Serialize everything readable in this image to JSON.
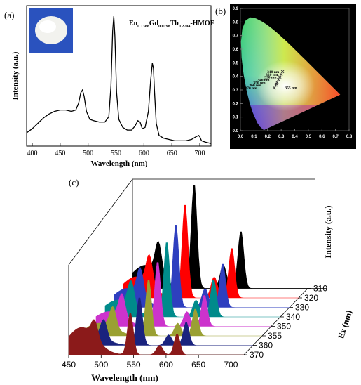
{
  "panel_labels": {
    "a": "(a)",
    "b": "(b)",
    "c": "(c)"
  },
  "chart_data": [
    {
      "type": "line",
      "panel": "(a)",
      "title_parts": {
        "eu": "Eu",
        "eu_sub": "0.1388",
        "gd": "Gd",
        "gd_sub": "0.0198",
        "tb": "Tb",
        "tb_sub": "0.2704",
        "suffix": "-HMOF"
      },
      "xlabel": "Wavelength (nm)",
      "ylabel": "Intensity (a.u.)",
      "xlim": [
        390,
        720
      ],
      "ylim": [
        0,
        1.05
      ],
      "xticks": [
        400,
        450,
        500,
        550,
        600,
        650,
        700
      ],
      "series": [
        {
          "x": [
            390,
            400,
            410,
            420,
            430,
            440,
            450,
            460,
            470,
            478,
            483,
            487,
            490,
            493,
            497,
            503,
            510,
            520,
            530,
            537,
            541,
            544,
            546,
            548,
            551,
            555,
            562,
            570,
            578,
            584,
            589,
            593,
            597,
            602,
            608,
            612,
            615,
            617,
            619,
            622,
            627,
            635,
            645,
            655,
            665,
            675,
            685,
            693,
            698,
            700,
            703,
            710,
            720
          ],
          "values": [
            0.1,
            0.13,
            0.17,
            0.21,
            0.24,
            0.26,
            0.27,
            0.27,
            0.26,
            0.27,
            0.32,
            0.4,
            0.42,
            0.37,
            0.26,
            0.2,
            0.19,
            0.18,
            0.18,
            0.22,
            0.45,
            0.86,
            0.97,
            0.82,
            0.4,
            0.2,
            0.14,
            0.12,
            0.12,
            0.15,
            0.19,
            0.18,
            0.13,
            0.14,
            0.26,
            0.49,
            0.62,
            0.58,
            0.4,
            0.17,
            0.08,
            0.06,
            0.05,
            0.04,
            0.04,
            0.04,
            0.05,
            0.07,
            0.08,
            0.07,
            0.04,
            0.03,
            0.02
          ]
        }
      ]
    },
    {
      "type": "scatter",
      "panel": "(b)",
      "xticks": [
        "0.0",
        "0.1",
        "0.2",
        "0.3",
        "0.4",
        "0.5",
        "0.6",
        "0.7",
        "0.8"
      ],
      "yticks": [
        "0.0",
        "0.1",
        "0.2",
        "0.3",
        "0.4",
        "0.5",
        "0.6",
        "0.7",
        "0.8",
        "0.9"
      ],
      "xlim": [
        0,
        0.8
      ],
      "ylim": [
        0,
        0.9
      ],
      "points": [
        {
          "label": "310 nm",
          "x": 0.31,
          "y": 0.435
        },
        {
          "label": "320 nm",
          "x": 0.3,
          "y": 0.415
        },
        {
          "label": "330 nm",
          "x": 0.29,
          "y": 0.395
        },
        {
          "label": "340 nm",
          "x": 0.28,
          "y": 0.375
        },
        {
          "label": "350 nm",
          "x": 0.27,
          "y": 0.355
        },
        {
          "label": "360 nm",
          "x": 0.26,
          "y": 0.335
        },
        {
          "label": "370 nm",
          "x": 0.25,
          "y": 0.315
        },
        {
          "label": "355 nm",
          "x": 0.265,
          "y": 0.345
        }
      ]
    },
    {
      "type": "line",
      "panel": "(c)",
      "xlabel": "Wavelength (nm)",
      "ylabel": "Intensity (a.u.)",
      "zlabel": "Ex (nm)",
      "xlim": [
        450,
        720
      ],
      "xticks": [
        450,
        500,
        550,
        600,
        650,
        700
      ],
      "series": [
        {
          "name": "310",
          "color": "#000000",
          "peaks": [
            0.22,
            0.3,
            1.0,
            0.22,
            0.55
          ]
        },
        {
          "name": "320",
          "color": "#ff0000",
          "peaks": [
            0.2,
            0.28,
            0.9,
            0.2,
            0.48
          ]
        },
        {
          "name": "330",
          "color": "#2e3fbf",
          "peaks": [
            0.18,
            0.26,
            0.8,
            0.18,
            0.42
          ]
        },
        {
          "name": "340",
          "color": "#008b8b",
          "peaks": [
            0.16,
            0.24,
            0.72,
            0.16,
            0.36
          ]
        },
        {
          "name": "350",
          "color": "#cc33cc",
          "peaks": [
            0.14,
            0.22,
            0.62,
            0.14,
            0.3
          ]
        },
        {
          "name": "355",
          "color": "#9aa033",
          "peaks": [
            0.12,
            0.2,
            0.54,
            0.12,
            0.26
          ]
        },
        {
          "name": "360",
          "color": "#1a237e",
          "peaks": [
            0.1,
            0.18,
            0.46,
            0.1,
            0.22
          ]
        },
        {
          "name": "370",
          "color": "#8b1a1a",
          "peaks": [
            0.26,
            0.16,
            0.4,
            0.09,
            0.2
          ]
        }
      ]
    }
  ]
}
